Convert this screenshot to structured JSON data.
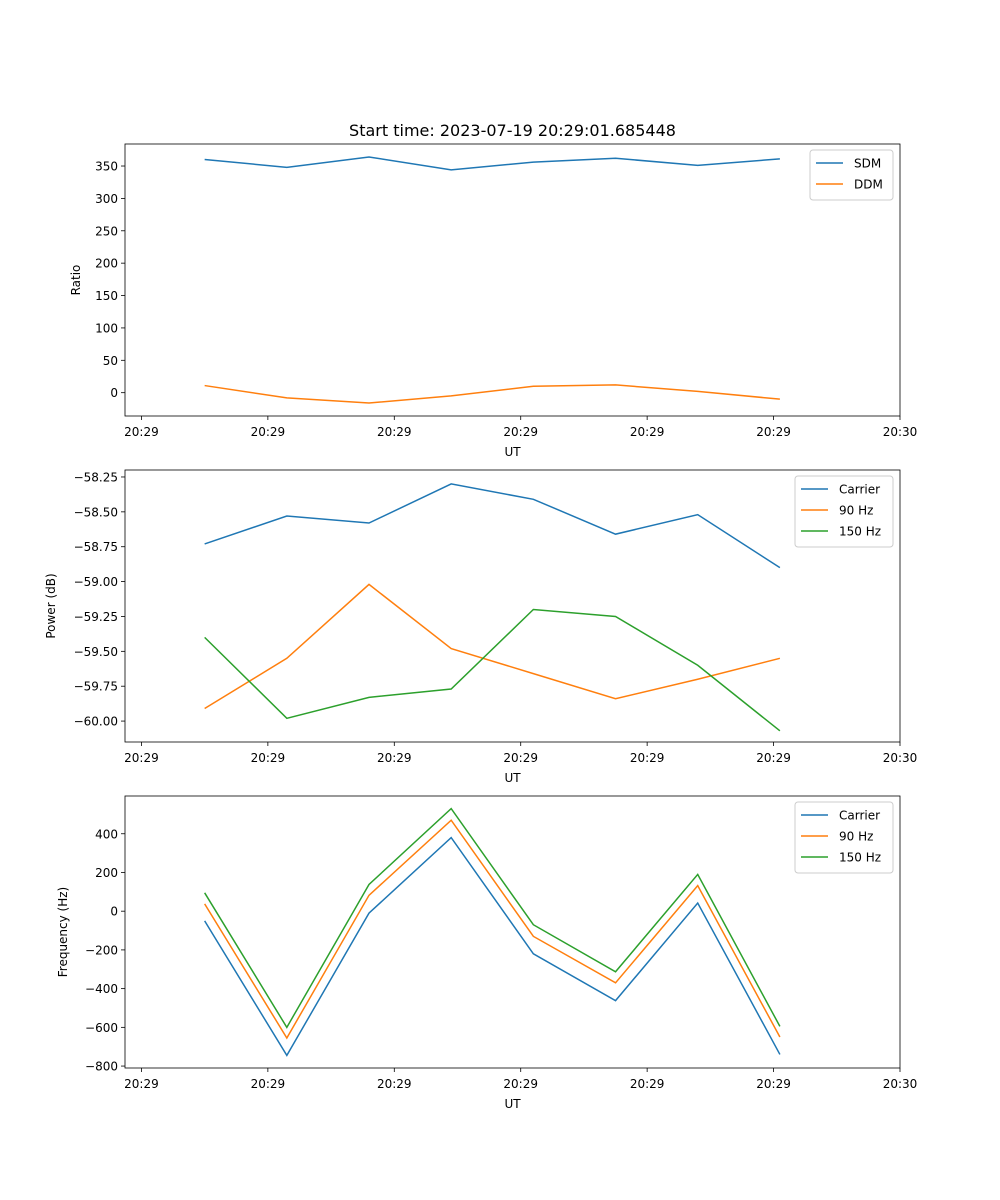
{
  "figure_title": "Start time: 2023-07-19 20:29:01.685448",
  "colors": {
    "blue": "#1f77b4",
    "orange": "#ff7f0e",
    "green": "#2ca02c"
  },
  "chart_data": [
    {
      "type": "line",
      "title": "Start time: 2023-07-19 20:29:01.685448",
      "xlabel": "UT",
      "ylabel": "Ratio",
      "x": [
        0.5,
        1.15,
        1.8,
        2.45,
        3.1,
        3.75,
        4.4,
        5.05
      ],
      "xlim": [
        -0.13,
        6.0
      ],
      "xticks": [
        0,
        1,
        2,
        3,
        4,
        5,
        6
      ],
      "xtick_labels": [
        "20:29",
        "20:29",
        "20:29",
        "20:29",
        "20:29",
        "20:29",
        "20:30"
      ],
      "ylim": [
        -36,
        384
      ],
      "yticks": [
        0,
        50,
        100,
        150,
        200,
        250,
        300,
        350
      ],
      "legend": "top-right",
      "series": [
        {
          "name": "SDM",
          "color": "#1f77b4",
          "values": [
            360,
            348,
            364,
            344,
            356,
            362,
            351,
            361
          ]
        },
        {
          "name": "DDM",
          "color": "#ff7f0e",
          "values": [
            11,
            -8,
            -16,
            -5,
            10,
            12,
            2,
            -10
          ]
        }
      ]
    },
    {
      "type": "line",
      "xlabel": "UT",
      "ylabel": "Power (dB)",
      "x": [
        0.5,
        1.15,
        1.8,
        2.45,
        3.1,
        3.75,
        4.4,
        5.05
      ],
      "xlim": [
        -0.13,
        6.0
      ],
      "xticks": [
        0,
        1,
        2,
        3,
        4,
        5,
        6
      ],
      "xtick_labels": [
        "20:29",
        "20:29",
        "20:29",
        "20:29",
        "20:29",
        "20:29",
        "20:30"
      ],
      "ylim": [
        -60.15,
        -58.2
      ],
      "yticks": [
        -60.0,
        -59.75,
        -59.5,
        -59.25,
        -59.0,
        -58.75,
        -58.5,
        -58.25
      ],
      "ytick_labels": [
        "−60.00",
        "−59.75",
        "−59.50",
        "−59.25",
        "−59.00",
        "−58.75",
        "−58.50",
        "−58.25"
      ],
      "legend": "top-right",
      "series": [
        {
          "name": "Carrier",
          "color": "#1f77b4",
          "values": [
            -58.73,
            -58.53,
            -58.58,
            -58.3,
            -58.41,
            -58.66,
            -58.52,
            -58.9
          ]
        },
        {
          "name": "90 Hz",
          "color": "#ff7f0e",
          "values": [
            -59.91,
            -59.55,
            -59.02,
            -59.48,
            -59.66,
            -59.84,
            -59.7,
            -59.55
          ]
        },
        {
          "name": "150 Hz",
          "color": "#2ca02c",
          "values": [
            -59.4,
            -59.98,
            -59.83,
            -59.77,
            -59.2,
            -59.25,
            -59.6,
            -60.07
          ]
        }
      ]
    },
    {
      "type": "line",
      "xlabel": "UT",
      "ylabel": "Frequency (Hz)",
      "x": [
        0.5,
        1.15,
        1.8,
        2.45,
        3.1,
        3.75,
        4.4,
        5.05
      ],
      "xlim": [
        -0.13,
        6.0
      ],
      "xticks": [
        0,
        1,
        2,
        3,
        4,
        5,
        6
      ],
      "xtick_labels": [
        "20:29",
        "20:29",
        "20:29",
        "20:29",
        "20:29",
        "20:29",
        "20:30"
      ],
      "ylim": [
        -810,
        595
      ],
      "yticks": [
        -800,
        -600,
        -400,
        -200,
        0,
        200,
        400
      ],
      "ytick_labels": [
        "−800",
        "−600",
        "−400",
        "−200",
        "0",
        "200",
        "400"
      ],
      "legend": "top-right",
      "series": [
        {
          "name": "Carrier",
          "color": "#1f77b4",
          "values": [
            -50,
            -745,
            -10,
            380,
            -220,
            -462,
            42,
            -740
          ]
        },
        {
          "name": "90 Hz",
          "color": "#ff7f0e",
          "values": [
            38,
            -655,
            82,
            470,
            -130,
            -370,
            132,
            -650
          ]
        },
        {
          "name": "150 Hz",
          "color": "#2ca02c",
          "values": [
            95,
            -600,
            138,
            530,
            -70,
            -313,
            190,
            -595
          ]
        }
      ]
    }
  ]
}
